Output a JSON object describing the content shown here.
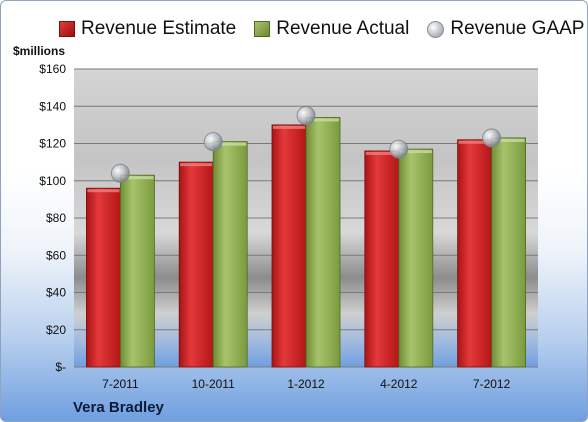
{
  "chart_data": {
    "type": "bar",
    "categories": [
      "7-2011",
      "10-2011",
      "1-2012",
      "4-2012",
      "7-2012"
    ],
    "series": [
      {
        "name": "Revenue Estimate",
        "values": [
          96,
          110,
          130,
          116,
          122
        ],
        "color": "#c8191c",
        "kind": "bar"
      },
      {
        "name": "Revenue Actual",
        "values": [
          103,
          121,
          134,
          117,
          123
        ],
        "color": "#8fae4e",
        "kind": "bar"
      },
      {
        "name": "Revenue GAAP",
        "values": [
          104,
          121,
          135,
          117,
          123
        ],
        "color": "#b5b9c1",
        "kind": "marker"
      }
    ],
    "ylabel": "$millions",
    "ylim": [
      0,
      160
    ],
    "yticks": [
      0,
      20,
      40,
      60,
      80,
      100,
      120,
      140,
      160
    ],
    "ytick_labels": [
      "$-",
      "$20",
      "$40",
      "$60",
      "$80",
      "$100",
      "$120",
      "$140",
      "$160"
    ],
    "grid": true,
    "legend_position": "top"
  },
  "legend": {
    "estimate": "Revenue Estimate",
    "actual": "Revenue Actual",
    "gaap": "Revenue GAAP"
  },
  "company_name": "Vera Bradley"
}
